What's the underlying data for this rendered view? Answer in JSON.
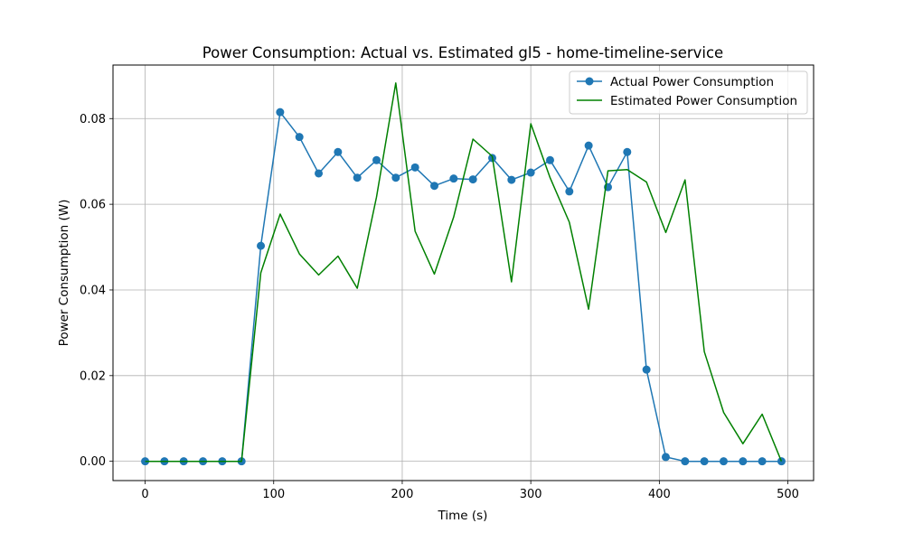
{
  "chart_data": {
    "type": "line",
    "title": "Power Consumption: Actual vs. Estimated gl5 - home-timeline-service",
    "xlabel": "Time (s)",
    "ylabel": "Power Consumption (W)",
    "xlim": [
      -25,
      520
    ],
    "ylim": [
      -0.0045,
      0.0925
    ],
    "xticks": [
      0,
      100,
      200,
      300,
      400,
      500
    ],
    "xtick_labels": [
      "0",
      "100",
      "200",
      "300",
      "400",
      "500"
    ],
    "yticks": [
      0.0,
      0.02,
      0.04,
      0.06,
      0.08
    ],
    "ytick_labels": [
      "0.00",
      "0.02",
      "0.04",
      "0.06",
      "0.08"
    ],
    "grid": true,
    "legend_position": "top-right",
    "x": [
      0,
      15,
      30,
      45,
      60,
      75,
      90,
      105,
      120,
      135,
      150,
      165,
      180,
      195,
      210,
      225,
      240,
      255,
      270,
      285,
      300,
      315,
      330,
      345,
      360,
      375,
      390,
      405,
      420,
      435,
      450,
      465,
      480,
      495
    ],
    "series": [
      {
        "name": "Actual Power Consumption",
        "color": "#1f77b4",
        "marker": "circle",
        "values": [
          0,
          0,
          0,
          0,
          0,
          0,
          0.0503,
          0.0815,
          0.0757,
          0.0672,
          0.0722,
          0.0662,
          0.0703,
          0.0662,
          0.0686,
          0.0643,
          0.066,
          0.0658,
          0.0708,
          0.0657,
          0.0674,
          0.0703,
          0.063,
          0.0737,
          0.064,
          0.0722,
          0.0214,
          0.001,
          0,
          0,
          0,
          0,
          0,
          0
        ]
      },
      {
        "name": "Estimated Power Consumption",
        "color": "#008000",
        "marker": "none",
        "values": [
          0,
          0,
          0,
          0,
          0,
          0,
          0.044,
          0.0577,
          0.0484,
          0.0435,
          0.0479,
          0.0404,
          0.0617,
          0.0883,
          0.0537,
          0.0437,
          0.057,
          0.0752,
          0.0712,
          0.0419,
          0.0788,
          0.0662,
          0.0558,
          0.0355,
          0.0678,
          0.0681,
          0.0652,
          0.0534,
          0.0657,
          0.0256,
          0.0114,
          0.0041,
          0.011,
          0
        ]
      }
    ]
  }
}
